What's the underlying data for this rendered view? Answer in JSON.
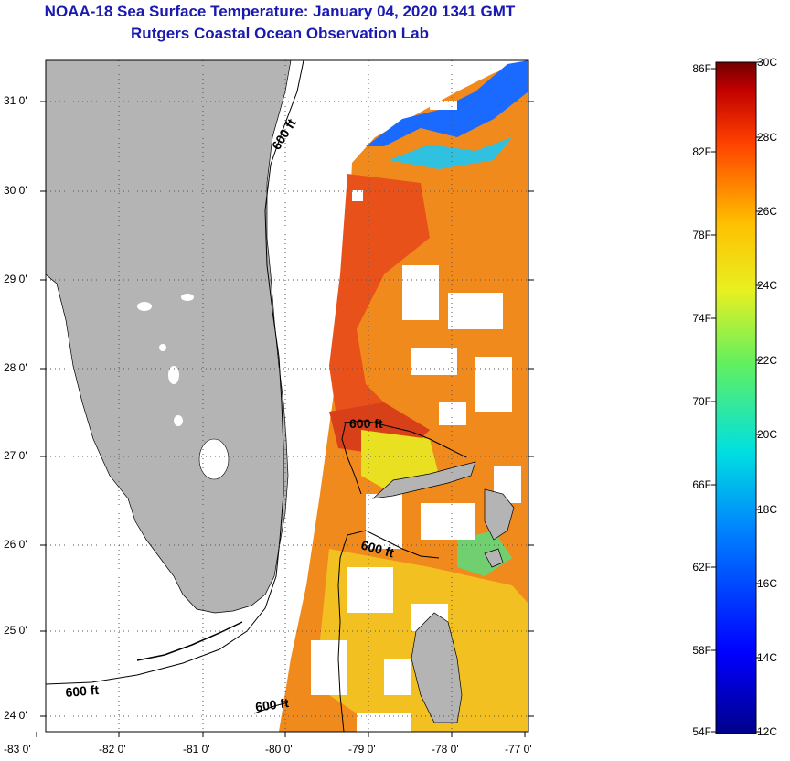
{
  "title": {
    "line1": "NOAA-18 Sea Surface Temperature:  January 04, 2020 1341 GMT",
    "line2": "Rutgers Coastal Ocean Observation Lab"
  },
  "colors": {
    "title": "#1a1ab0",
    "land": "#b4b4b4",
    "no_data": "#ffffff",
    "gridline": "#555555"
  },
  "map": {
    "lon_ticks": [
      "-83 0'",
      "-82 0'",
      "-81 0'",
      "-80 0'",
      "-79 0'",
      "-78 0'",
      "-77 0'"
    ],
    "lat_ticks": [
      "31 0'",
      "30 0'",
      "29 0'",
      "28 0'",
      "27 0'",
      "26 0'",
      "25 0'",
      "24 0'"
    ],
    "contour_labels": [
      "600 ft",
      "600 ft",
      "600 ft",
      "600 ft",
      "600 ft"
    ]
  },
  "colorbar": {
    "fahrenheit": [
      "86F",
      "82F",
      "78F",
      "74F",
      "70F",
      "66F",
      "62F",
      "58F",
      "54F"
    ],
    "celsius": [
      "30C",
      "28C",
      "26C",
      "24C",
      "22C",
      "20C",
      "18C",
      "16C",
      "14C",
      "12C"
    ]
  }
}
